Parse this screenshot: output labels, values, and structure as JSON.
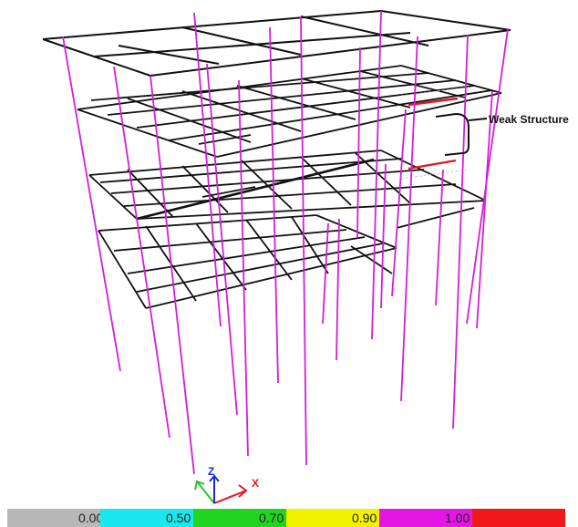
{
  "annotation": {
    "label": "Weak Structure"
  },
  "axes_triad": {
    "x_label": "X",
    "z_label": "Z"
  },
  "colors": {
    "beam": "#111111",
    "column": "#d21fd8",
    "weak_member": "#e3161f",
    "axis_x": "#e3161f",
    "axis_y": "#2fbf2f",
    "axis_z": "#1a2bd6"
  },
  "legend": {
    "segments": [
      {
        "color": "#b8b8b8",
        "label": "0.00"
      },
      {
        "color": "#19e8ee",
        "label": "0.50"
      },
      {
        "color": "#22d422",
        "label": "0.70"
      },
      {
        "color": "#f2f200",
        "label": "0.90"
      },
      {
        "color": "#e316e3",
        "label": "1.00"
      },
      {
        "color": "#f01818",
        "label": ""
      }
    ]
  }
}
